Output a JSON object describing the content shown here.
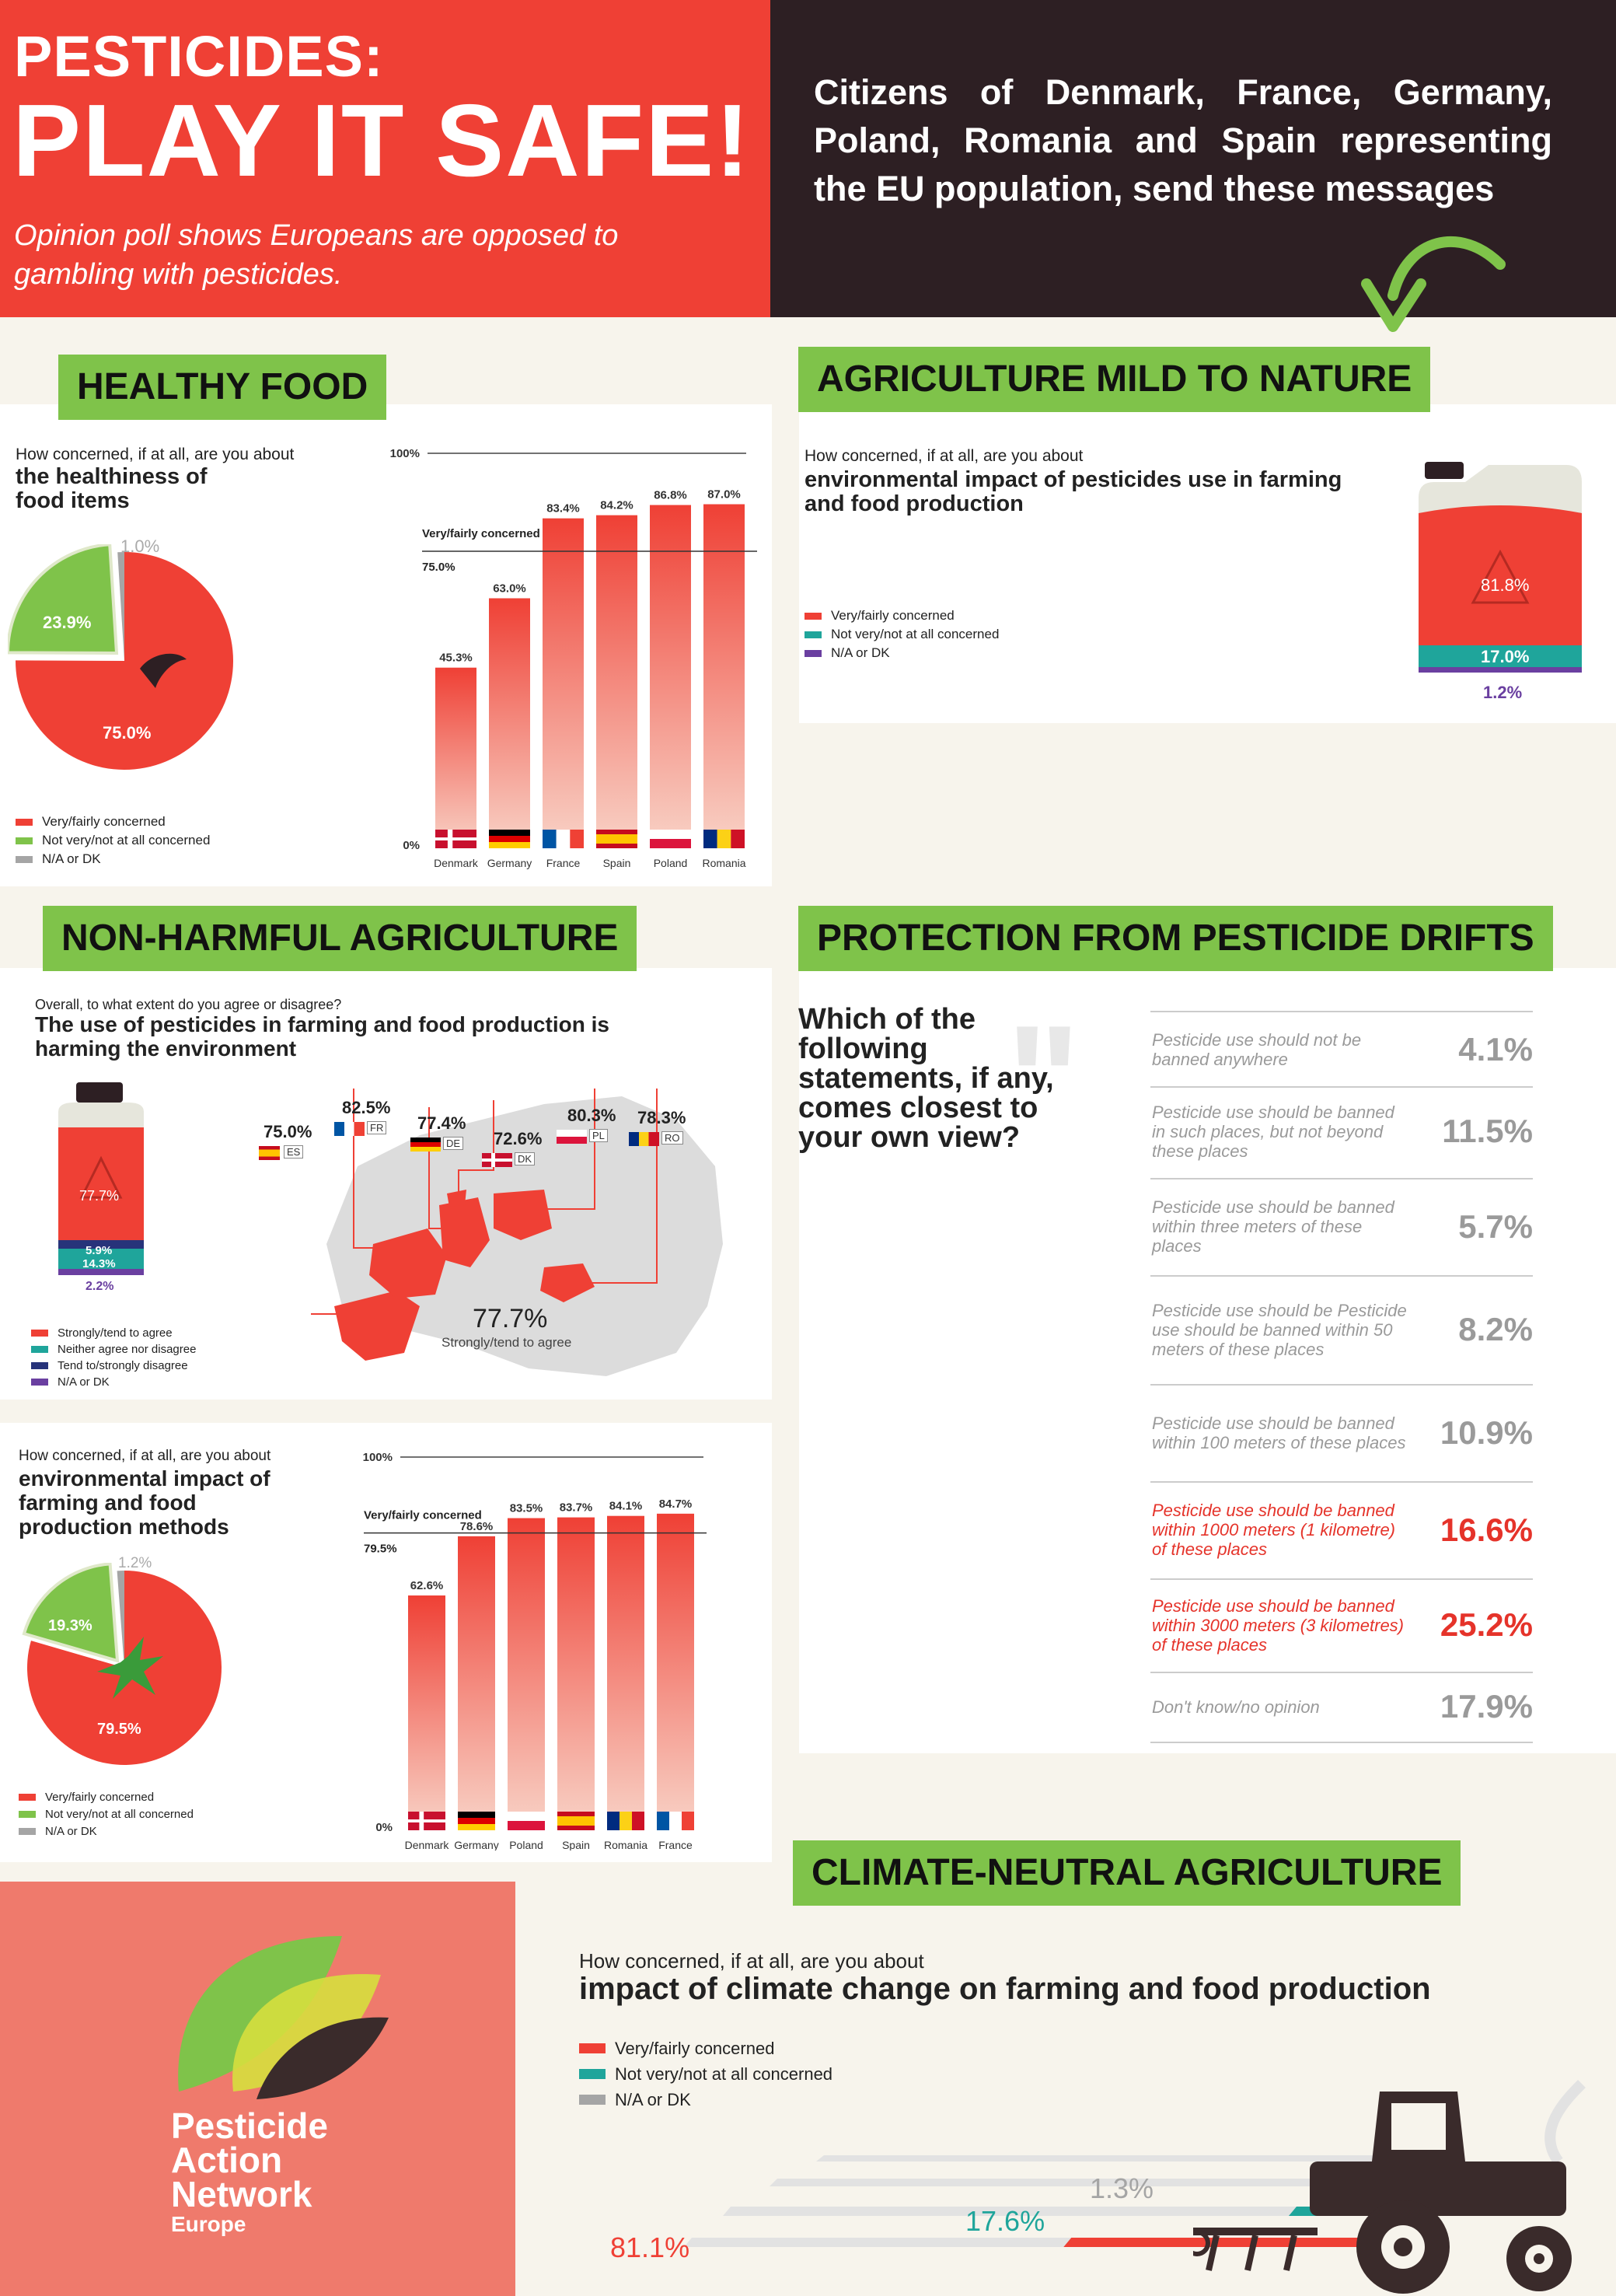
{
  "header": {
    "title_line1": "PESTICIDES:",
    "title_line2": "PLAY IT SAFE!",
    "subtitle": "Opinion poll shows Europeans are opposed to gambling with pesticides.",
    "intro": "Citizens of Denmark, France, Germany, Poland, Romania and Spain representing the EU population, send these messages"
  },
  "colors": {
    "red": "#ef4035",
    "dark": "#2d1f23",
    "green": "#7fc34a",
    "teal": "#1fa59b",
    "purple": "#6a3fa0",
    "grey": "#a5a5a5"
  },
  "healthy_food": {
    "badge": "HEALTHY FOOD",
    "question_small": "How concerned, if at all, are you about",
    "question_big": "the healthiness of food items",
    "legend": [
      "Very/fairly concerned",
      "Not very/not at all concerned",
      "N/A or DK"
    ],
    "pie_labels": [
      "75.0%",
      "23.9%",
      "1.0%"
    ],
    "avg_label": "Very/fairly concerned",
    "avg_value": "75.0%",
    "axis_top": "100%",
    "axis_bottom": "0%"
  },
  "nature": {
    "badge": "AGRICULTURE MILD TO NATURE",
    "question_small": "How concerned, if at all, are you about",
    "question_big": "environmental impact of pesticides use in farming and food production",
    "legend": [
      "Very/fairly concerned",
      "Not very/not at all concerned",
      "N/A or DK"
    ],
    "labels": [
      "81.8%",
      "17.0%",
      "1.2%"
    ]
  },
  "non_harmful": {
    "badge": "NON-HARMFUL AGRICULTURE",
    "question_small": "Overall, to what extent do you agree or disagree?",
    "question_big": "The use of pesticides in farming and food production is harming the environment",
    "legend": [
      "Strongly/tend to agree",
      "Neither agree nor disagree",
      "Tend to/strongly disagree",
      "N/A or DK"
    ],
    "bottle_labels": [
      "77.7%",
      "5.9%",
      "14.3%",
      "2.2%"
    ],
    "map_total": "77.7%",
    "map_total_label": "Strongly/tend to agree",
    "map_points": [
      {
        "value": "75.0%",
        "code": "ES"
      },
      {
        "value": "82.5%",
        "code": "FR"
      },
      {
        "value": "77.4%",
        "code": "DE"
      },
      {
        "value": "72.6%",
        "code": "DK"
      },
      {
        "value": "80.3%",
        "code": "PL"
      },
      {
        "value": "78.3%",
        "code": "RO"
      }
    ]
  },
  "env_methods": {
    "question_small": "How concerned, if at all, are you about",
    "question_big": "environmental impact of farming and food production methods",
    "legend": [
      "Very/fairly concerned",
      "Not very/not at all concerned",
      "N/A or DK"
    ],
    "pie_labels": [
      "79.5%",
      "19.3%",
      "1.2%"
    ],
    "avg_label": "Very/fairly concerned",
    "avg_value": "79.5%",
    "axis_top": "100%",
    "axis_bottom": "0%"
  },
  "drifts": {
    "badge": "PROTECTION FROM PESTICIDE DRIFTS",
    "question": "Which of the following statements, if any, comes closest to your own view?",
    "rows": [
      {
        "text": "Pesticide use should not be banned anywhere",
        "value": "4.1%",
        "hl": false
      },
      {
        "text": "Pesticide use should be banned in such places, but not beyond these places",
        "value": "11.5%",
        "hl": false
      },
      {
        "text": "Pesticide use should be banned within three meters of these places",
        "value": "5.7%",
        "hl": false
      },
      {
        "text": "Pesticide use should be Pesticide use should be banned within 50 meters of these places",
        "value": "8.2%",
        "hl": false
      },
      {
        "text": "Pesticide use should be banned within 100 meters of these places",
        "value": "10.9%",
        "hl": false
      },
      {
        "text": "Pesticide use should be banned within 1000 meters (1 kilometre) of these places",
        "value": "16.6%",
        "hl": true
      },
      {
        "text": "Pesticide use should be banned within 3000 meters (3 kilometres) of these places",
        "value": "25.2%",
        "hl": true
      },
      {
        "text": "Don't know/no opinion",
        "value": "17.9%",
        "hl": false
      }
    ]
  },
  "climate": {
    "badge": "CLIMATE-NEUTRAL AGRICULTURE",
    "question_small": "How concerned, if at all, are you about",
    "question_big": "impact of climate change on farming and food production",
    "legend": [
      "Very/fairly concerned",
      "Not very/not at all concerned",
      "N/A or DK"
    ],
    "labels": [
      "81.1%",
      "17.6%",
      "1.3%"
    ]
  },
  "logo": {
    "line1": "Pesticide",
    "line2": "Action",
    "line3": "Network",
    "line4": "Europe"
  },
  "chart_data": [
    {
      "type": "pie",
      "name": "healthiness of food items",
      "categories": [
        "Very/fairly concerned",
        "Not very/not at all concerned",
        "N/A or DK"
      ],
      "values": [
        75.0,
        23.9,
        1.0
      ]
    },
    {
      "type": "bar",
      "name": "healthiness of food items by country",
      "categories": [
        "Denmark",
        "Germany",
        "France",
        "Spain",
        "Poland",
        "Romania"
      ],
      "values": [
        45.3,
        63.0,
        83.4,
        84.2,
        86.8,
        87.0
      ],
      "value_labels": [
        "45.3%",
        "63.0%",
        "83.4%",
        "84.2%",
        "86.8%",
        "87.0%"
      ],
      "reference_line": 75.0,
      "ylim": [
        0,
        100
      ]
    },
    {
      "type": "bar",
      "name": "environmental impact of pesticides use",
      "categories": [
        "Very/fairly concerned",
        "Not very/not at all concerned",
        "N/A or DK"
      ],
      "values": [
        81.8,
        17.0,
        1.2
      ]
    },
    {
      "type": "bar",
      "name": "harming the environment",
      "categories": [
        "Strongly/tend to agree",
        "Neither agree nor disagree",
        "Tend to/strongly disagree",
        "N/A or DK"
      ],
      "values": [
        77.7,
        5.9,
        14.3,
        2.2
      ]
    },
    {
      "type": "scatter",
      "name": "agree by country",
      "categories": [
        "ES",
        "FR",
        "DE",
        "DK",
        "PL",
        "RO"
      ],
      "values": [
        75.0,
        82.5,
        77.4,
        72.6,
        80.3,
        78.3
      ]
    },
    {
      "type": "pie",
      "name": "environmental impact of farming and food production methods",
      "categories": [
        "Very/fairly concerned",
        "Not very/not at all concerned",
        "N/A or DK"
      ],
      "values": [
        79.5,
        19.3,
        1.2
      ]
    },
    {
      "type": "bar",
      "name": "environmental impact of farming methods by country",
      "categories": [
        "Denmark",
        "Germany",
        "Poland",
        "Spain",
        "Romania",
        "France"
      ],
      "values": [
        62.6,
        78.6,
        83.5,
        83.7,
        84.1,
        84.7
      ],
      "value_labels": [
        "62.6%",
        "78.6%",
        "83.5%",
        "83.7%",
        "84.1%",
        "84.7%"
      ],
      "reference_line": 79.5,
      "ylim": [
        0,
        100
      ]
    },
    {
      "type": "bar",
      "name": "protection from pesticide drifts",
      "categories": [
        "not banned anywhere",
        "banned in such places",
        "within three meters",
        "within 50 meters",
        "within 100 meters",
        "within 1000 meters",
        "within 3000 meters",
        "Don't know/no opinion"
      ],
      "values": [
        4.1,
        11.5,
        5.7,
        8.2,
        10.9,
        16.6,
        25.2,
        17.9
      ]
    },
    {
      "type": "bar",
      "name": "impact of climate change on farming",
      "categories": [
        "Very/fairly concerned",
        "Not very/not at all concerned",
        "N/A or DK"
      ],
      "values": [
        81.1,
        17.6,
        1.3
      ]
    }
  ]
}
